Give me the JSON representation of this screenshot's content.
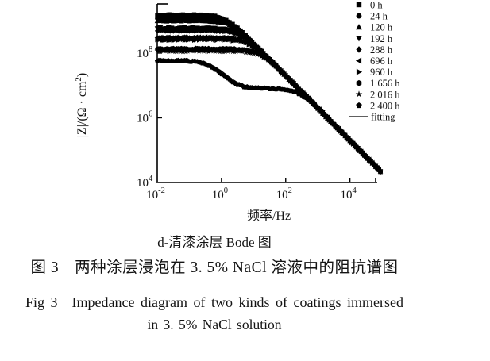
{
  "figure": {
    "subfigure_letter": "d",
    "figure_number_cn": "图 3",
    "figure_number_en": "Fig 3"
  },
  "captions": {
    "subfigure": "d-清漆涂层 Bode 图",
    "chinese": "图 3　两种涂层浸泡在 3. 5% NaCl 溶液中的阻抗谱图",
    "english_line1": "Fig 3　Impedance diagram of two kinds of coatings immersed",
    "english_line2": "in 3. 5% NaCl solution"
  },
  "chart_data": {
    "type": "line",
    "subtype": "bode-magnitude-log-log",
    "title": "",
    "xlabel": "频率/Hz",
    "ylabel": "|Z|/(Ω · cm²)",
    "ylabel_parts": {
      "base": "|Z|/(Ω · cm",
      "sup": "2",
      "close": ")"
    },
    "axes": {
      "scale": "log-log",
      "x_log_range": [
        -2,
        4.85
      ],
      "y_log_range": [
        4,
        9.52
      ],
      "x_tick_exponents": [
        -2,
        0,
        2,
        4
      ],
      "y_tick_exponents": [
        8,
        6,
        4
      ],
      "grid": false
    },
    "legend_position": "top-right",
    "fitting_label": "fitting",
    "marker_color": "#000000",
    "series": [
      {
        "label": "0 h",
        "marker": "square",
        "model": "rc",
        "R": 1500000000.0,
        "C": 8e-11,
        "plateau_ohm_cm2": 1500000000.0
      },
      {
        "label": "24 h",
        "marker": "circle",
        "model": "rc",
        "R": 1200000000.0,
        "C": 8e-11,
        "plateau_ohm_cm2": 1200000000.0
      },
      {
        "label": "120 h",
        "marker": "triangle-up",
        "model": "rc",
        "R": 1000000000.0,
        "C": 8e-11,
        "plateau_ohm_cm2": 1000000000.0
      },
      {
        "label": "192 h",
        "marker": "triangle-down",
        "model": "rc",
        "R": 600000000.0,
        "C": 8e-11,
        "plateau_ohm_cm2": 600000000.0
      },
      {
        "label": "288 h",
        "marker": "diamond",
        "model": "rc",
        "R": 500000000.0,
        "C": 8e-11,
        "plateau_ohm_cm2": 500000000.0
      },
      {
        "label": "696 h",
        "marker": "triangle-left",
        "model": "rc",
        "R": 300000000.0,
        "C": 8e-11,
        "plateau_ohm_cm2": 300000000.0
      },
      {
        "label": "960 h",
        "marker": "triangle-right",
        "model": "rc",
        "R": 260000000.0,
        "C": 8e-11,
        "plateau_ohm_cm2": 260000000.0
      },
      {
        "label": "1 656 h",
        "marker": "hexagon",
        "model": "rc",
        "R": 135000000.0,
        "C": 8e-11,
        "plateau_ohm_cm2": 135000000.0
      },
      {
        "label": "2 016 h",
        "marker": "star",
        "model": "rc",
        "R": 115000000.0,
        "C": 8e-11,
        "plateau_ohm_cm2": 115000000.0
      },
      {
        "label": "2 400 h",
        "marker": "pentagon",
        "model": "rc2",
        "R1": 50000000.0,
        "C1": 8e-09,
        "R2": 8000000.0,
        "C2": 8e-11,
        "plateau_ohm_cm2": 58000000.0,
        "fit": {
          "R1": 50000000.0,
          "C1": 6e-09,
          "R2": 8000000.0,
          "C2": 8e-11
        }
      }
    ],
    "high_frequency_tail": {
      "slope_per_decade": -1,
      "end_point": {
        "f_hz": 80000.0,
        "z_ohm_cm2": 20000.0
      }
    }
  }
}
